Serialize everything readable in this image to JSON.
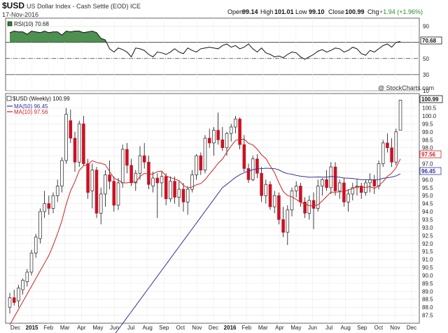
{
  "header": {
    "symbol": "$USD",
    "name": "US Dollar Index - Cash Settle (EOD) ICE",
    "date": "17-Nov-2016",
    "open_label": "Open",
    "open": "99.14",
    "high_label": "High",
    "high": "101.01",
    "low_label": "Low",
    "low": "99.10",
    "close_label": "Close",
    "close": "100.99",
    "chg_label": "Chg",
    "chg": "+1.94 (+1.96%)",
    "credit": "@ StockCharts.com"
  },
  "chart_data": [
    {
      "type": "line",
      "legend": "RSI(10) 70.68",
      "ylim": [
        10,
        100
      ],
      "ticks": [
        10,
        30,
        50,
        70,
        90
      ],
      "reference_lines": [
        30,
        50,
        70
      ],
      "current_tag": "70.68",
      "colors": {
        "line": "#111111",
        "fill_overbought": "#2e7d32"
      },
      "values": [
        82,
        84,
        83,
        83,
        80,
        84,
        83,
        82,
        84,
        82,
        83,
        83,
        79,
        84,
        83,
        84,
        84,
        82,
        83,
        84,
        82,
        75,
        73,
        62,
        58,
        63,
        61,
        58,
        52,
        63,
        62,
        60,
        55,
        52,
        58,
        57,
        55,
        58,
        62,
        58,
        56,
        63,
        60,
        58,
        62,
        63,
        64,
        63,
        62,
        66,
        68,
        64,
        66,
        62,
        64,
        68,
        62,
        58,
        63,
        57,
        55,
        52,
        53,
        51,
        55,
        58,
        57,
        52,
        49,
        52,
        55,
        59,
        61,
        58,
        60,
        63,
        62,
        58,
        60,
        64,
        62,
        56,
        54,
        60,
        58,
        62,
        66,
        68,
        64,
        70,
        71
      ]
    },
    {
      "type": "candlestick",
      "legend": "$USD (Weekly) 100.99",
      "ylim": [
        87,
        101.4
      ],
      "ticks": [
        87.5,
        88.0,
        88.5,
        89.0,
        89.5,
        90.0,
        90.5,
        91.0,
        91.5,
        92.0,
        92.5,
        93.0,
        93.5,
        94.0,
        94.5,
        95.0,
        95.5,
        96.0,
        96.5,
        97.0,
        97.5,
        98.0,
        98.5,
        99.0,
        99.5,
        100.0,
        100.5
      ],
      "x_labels": [
        "Dec",
        "2015",
        "Feb",
        "Mar",
        "Apr",
        "May",
        "Jun",
        "Jul",
        "Aug",
        "Sep",
        "Oct",
        "Nov",
        "Dec",
        "2016",
        "Feb",
        "Mar",
        "Apr",
        "May",
        "Jun",
        "Jul",
        "Aug",
        "Sep",
        "Oct",
        "Nov",
        "Dec"
      ],
      "colors": {
        "up": "#ffffff",
        "down": "#cc1122",
        "wick": "#111111",
        "hollow_edge": "#222222"
      },
      "ma_50": {
        "legend": "MA(50) 96.45",
        "color": "#333399",
        "current_tag": "96.45"
      },
      "ma_10": {
        "legend": "MA(10) 97.56",
        "color": "#cc2222",
        "current_tag": "97.56"
      },
      "current_tag": "100.99",
      "ohlc": [
        {
          "o": 88.0,
          "h": 88.9,
          "l": 87.6,
          "c": 88.6
        },
        {
          "o": 88.6,
          "h": 89.1,
          "l": 88.1,
          "c": 88.3
        },
        {
          "o": 88.4,
          "h": 89.4,
          "l": 88.0,
          "c": 89.2
        },
        {
          "o": 89.1,
          "h": 89.8,
          "l": 88.8,
          "c": 89.7
        },
        {
          "o": 89.6,
          "h": 90.4,
          "l": 89.3,
          "c": 90.2
        },
        {
          "o": 90.2,
          "h": 91.6,
          "l": 90.0,
          "c": 91.4
        },
        {
          "o": 91.4,
          "h": 92.6,
          "l": 91.1,
          "c": 92.4
        },
        {
          "o": 92.3,
          "h": 94.2,
          "l": 92.0,
          "c": 94.0
        },
        {
          "o": 94.0,
          "h": 95.3,
          "l": 93.6,
          "c": 94.5
        },
        {
          "o": 94.5,
          "h": 95.0,
          "l": 93.8,
          "c": 94.2
        },
        {
          "o": 94.2,
          "h": 95.2,
          "l": 93.9,
          "c": 95.0
        },
        {
          "o": 95.0,
          "h": 96.0,
          "l": 94.6,
          "c": 95.6
        },
        {
          "o": 95.6,
          "h": 97.4,
          "l": 95.2,
          "c": 97.2
        },
        {
          "o": 97.2,
          "h": 100.5,
          "l": 97.0,
          "c": 100.1
        },
        {
          "o": 99.7,
          "h": 100.4,
          "l": 98.3,
          "c": 98.6
        },
        {
          "o": 98.6,
          "h": 99.0,
          "l": 96.5,
          "c": 97.1
        },
        {
          "o": 97.1,
          "h": 99.7,
          "l": 96.8,
          "c": 99.5
        },
        {
          "o": 99.5,
          "h": 100.0,
          "l": 96.9,
          "c": 97.0
        },
        {
          "o": 97.0,
          "h": 97.3,
          "l": 94.8,
          "c": 95.2
        },
        {
          "o": 95.3,
          "h": 97.0,
          "l": 94.2,
          "c": 96.6
        },
        {
          "o": 96.6,
          "h": 96.8,
          "l": 93.6,
          "c": 93.9
        },
        {
          "o": 93.9,
          "h": 95.5,
          "l": 93.2,
          "c": 95.1
        },
        {
          "o": 95.1,
          "h": 96.6,
          "l": 94.3,
          "c": 96.3
        },
        {
          "o": 96.3,
          "h": 97.2,
          "l": 95.4,
          "c": 95.9
        },
        {
          "o": 95.9,
          "h": 96.2,
          "l": 94.0,
          "c": 94.4
        },
        {
          "o": 94.4,
          "h": 96.1,
          "l": 94.1,
          "c": 95.8
        },
        {
          "o": 95.8,
          "h": 98.2,
          "l": 95.5,
          "c": 97.9
        },
        {
          "o": 97.9,
          "h": 98.3,
          "l": 96.4,
          "c": 96.9
        },
        {
          "o": 96.9,
          "h": 97.3,
          "l": 95.6,
          "c": 95.8
        },
        {
          "o": 95.8,
          "h": 96.6,
          "l": 95.3,
          "c": 96.4
        },
        {
          "o": 96.4,
          "h": 98.1,
          "l": 96.0,
          "c": 97.5
        },
        {
          "o": 97.5,
          "h": 98.3,
          "l": 96.7,
          "c": 97.1
        },
        {
          "o": 97.1,
          "h": 97.5,
          "l": 95.4,
          "c": 95.7
        },
        {
          "o": 95.6,
          "h": 96.5,
          "l": 95.2,
          "c": 96.1
        },
        {
          "o": 96.1,
          "h": 96.4,
          "l": 93.6,
          "c": 95.8
        },
        {
          "o": 95.8,
          "h": 96.5,
          "l": 94.9,
          "c": 96.2
        },
        {
          "o": 96.2,
          "h": 96.4,
          "l": 94.4,
          "c": 94.8
        },
        {
          "o": 94.8,
          "h": 96.2,
          "l": 94.6,
          "c": 95.9
        },
        {
          "o": 95.9,
          "h": 96.2,
          "l": 94.5,
          "c": 94.9
        },
        {
          "o": 94.9,
          "h": 95.9,
          "l": 94.3,
          "c": 95.4
        },
        {
          "o": 95.4,
          "h": 95.8,
          "l": 94.0,
          "c": 94.6
        },
        {
          "o": 94.6,
          "h": 95.6,
          "l": 93.8,
          "c": 95.4
        },
        {
          "o": 95.4,
          "h": 96.6,
          "l": 95.2,
          "c": 96.3
        },
        {
          "o": 96.3,
          "h": 97.6,
          "l": 96.0,
          "c": 97.5
        },
        {
          "o": 97.5,
          "h": 97.7,
          "l": 96.3,
          "c": 96.6
        },
        {
          "o": 96.6,
          "h": 98.8,
          "l": 96.4,
          "c": 98.6
        },
        {
          "o": 98.6,
          "h": 99.2,
          "l": 98.0,
          "c": 98.3
        },
        {
          "o": 98.3,
          "h": 99.3,
          "l": 97.5,
          "c": 99.1
        },
        {
          "o": 99.1,
          "h": 100.2,
          "l": 98.2,
          "c": 98.5
        },
        {
          "o": 98.5,
          "h": 99.3,
          "l": 97.8,
          "c": 98.0
        },
        {
          "o": 98.0,
          "h": 99.0,
          "l": 97.5,
          "c": 98.9
        },
        {
          "o": 98.9,
          "h": 99.5,
          "l": 98.4,
          "c": 99.3
        },
        {
          "o": 99.3,
          "h": 100.0,
          "l": 98.9,
          "c": 99.8
        },
        {
          "o": 99.8,
          "h": 99.9,
          "l": 97.9,
          "c": 98.2
        },
        {
          "o": 98.2,
          "h": 98.8,
          "l": 96.5,
          "c": 96.7
        },
        {
          "o": 96.7,
          "h": 97.0,
          "l": 95.8,
          "c": 96.0
        },
        {
          "o": 96.0,
          "h": 97.5,
          "l": 95.9,
          "c": 97.3
        },
        {
          "o": 97.3,
          "h": 97.6,
          "l": 96.1,
          "c": 96.4
        },
        {
          "o": 96.4,
          "h": 96.8,
          "l": 94.6,
          "c": 95.0
        },
        {
          "o": 95.0,
          "h": 96.0,
          "l": 94.5,
          "c": 95.7
        },
        {
          "o": 95.7,
          "h": 95.9,
          "l": 94.1,
          "c": 94.3
        },
        {
          "o": 94.3,
          "h": 95.3,
          "l": 93.9,
          "c": 95.0
        },
        {
          "o": 95.0,
          "h": 95.2,
          "l": 93.2,
          "c": 93.5
        },
        {
          "o": 93.5,
          "h": 94.3,
          "l": 92.4,
          "c": 92.7
        },
        {
          "o": 92.7,
          "h": 94.4,
          "l": 91.9,
          "c": 94.1
        },
        {
          "o": 94.1,
          "h": 95.5,
          "l": 93.7,
          "c": 95.3
        },
        {
          "o": 95.3,
          "h": 95.9,
          "l": 94.9,
          "c": 95.6
        },
        {
          "o": 95.6,
          "h": 95.8,
          "l": 94.3,
          "c": 94.6
        },
        {
          "o": 94.6,
          "h": 94.9,
          "l": 93.6,
          "c": 93.9
        },
        {
          "o": 93.9,
          "h": 95.0,
          "l": 93.5,
          "c": 94.7
        },
        {
          "o": 94.7,
          "h": 95.2,
          "l": 92.9,
          "c": 94.2
        },
        {
          "o": 94.2,
          "h": 96.0,
          "l": 94.0,
          "c": 95.6
        },
        {
          "o": 95.6,
          "h": 96.1,
          "l": 95.0,
          "c": 96.0
        },
        {
          "o": 96.0,
          "h": 96.6,
          "l": 95.3,
          "c": 95.5
        },
        {
          "o": 95.5,
          "h": 97.1,
          "l": 95.1,
          "c": 96.8
        },
        {
          "o": 96.8,
          "h": 97.1,
          "l": 95.0,
          "c": 95.3
        },
        {
          "o": 95.3,
          "h": 96.0,
          "l": 94.8,
          "c": 95.8
        },
        {
          "o": 95.8,
          "h": 96.1,
          "l": 94.3,
          "c": 94.6
        },
        {
          "o": 94.6,
          "h": 95.4,
          "l": 94.0,
          "c": 95.1
        },
        {
          "o": 95.1,
          "h": 95.8,
          "l": 94.7,
          "c": 95.5
        },
        {
          "o": 95.5,
          "h": 96.0,
          "l": 95.0,
          "c": 95.6
        },
        {
          "o": 95.6,
          "h": 95.8,
          "l": 94.8,
          "c": 95.2
        },
        {
          "o": 95.2,
          "h": 96.0,
          "l": 95.0,
          "c": 95.8
        },
        {
          "o": 95.8,
          "h": 96.4,
          "l": 95.2,
          "c": 96.0
        },
        {
          "o": 96.0,
          "h": 96.3,
          "l": 95.1,
          "c": 95.6
        },
        {
          "o": 95.6,
          "h": 97.2,
          "l": 95.4,
          "c": 97.0
        },
        {
          "o": 97.0,
          "h": 98.5,
          "l": 96.8,
          "c": 98.3
        },
        {
          "o": 98.3,
          "h": 98.9,
          "l": 97.7,
          "c": 98.0
        },
        {
          "o": 98.0,
          "h": 98.6,
          "l": 96.8,
          "c": 97.1
        },
        {
          "o": 97.1,
          "h": 99.2,
          "l": 96.9,
          "c": 99.0
        },
        {
          "o": 99.1,
          "h": 101.0,
          "l": 99.1,
          "c": 100.99
        }
      ]
    }
  ]
}
